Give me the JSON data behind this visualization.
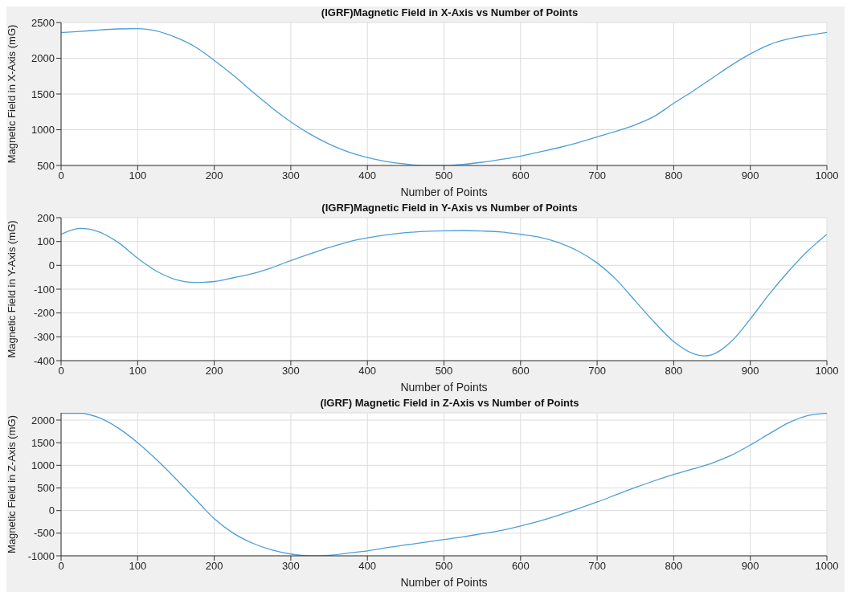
{
  "chart_data": [
    {
      "type": "line",
      "title": "(IGRF)Magnetic Field in X-Axis vs Number of Points",
      "xlabel": "Number of Points",
      "ylabel": "Magnetic Field in X-Axis (mG)",
      "color": "#4d9fd6",
      "grid": true,
      "x": [
        0,
        25,
        50,
        75,
        100,
        125,
        150,
        175,
        200,
        225,
        250,
        275,
        300,
        325,
        350,
        375,
        400,
        425,
        450,
        475,
        500,
        525,
        550,
        575,
        600,
        625,
        650,
        675,
        700,
        725,
        750,
        775,
        800,
        825,
        850,
        875,
        900,
        925,
        950,
        975,
        1000
      ],
      "values": [
        2360,
        2375,
        2395,
        2410,
        2415,
        2380,
        2290,
        2160,
        1970,
        1760,
        1530,
        1310,
        1110,
        940,
        800,
        690,
        610,
        555,
        520,
        500,
        500,
        515,
        545,
        585,
        630,
        690,
        750,
        820,
        900,
        980,
        1070,
        1190,
        1370,
        1540,
        1720,
        1900,
        2060,
        2190,
        2270,
        2320,
        2360
      ],
      "xlim": [
        0,
        1000
      ],
      "xticks": [
        0,
        100,
        200,
        300,
        400,
        500,
        600,
        700,
        800,
        900,
        1000
      ],
      "ylim": [
        500,
        2500
      ],
      "yticks": [
        500,
        1000,
        1500,
        2000,
        2500
      ]
    },
    {
      "type": "line",
      "title": "(IGRF)Magnetic Field in Y-Axis vs Number of Points",
      "xlabel": "Number of Points",
      "ylabel": "Magnetic Field in Y-Axis (mG)",
      "color": "#4d9fd6",
      "grid": true,
      "x": [
        0,
        25,
        50,
        75,
        100,
        125,
        150,
        175,
        200,
        225,
        250,
        275,
        300,
        325,
        350,
        375,
        400,
        425,
        450,
        475,
        500,
        525,
        550,
        575,
        600,
        625,
        650,
        675,
        700,
        725,
        750,
        775,
        800,
        825,
        840,
        850,
        875,
        900,
        925,
        950,
        975,
        1000
      ],
      "values": [
        130,
        155,
        140,
        95,
        30,
        -25,
        -60,
        -72,
        -68,
        -52,
        -35,
        -10,
        20,
        48,
        75,
        98,
        115,
        128,
        137,
        142,
        145,
        146,
        144,
        140,
        130,
        118,
        95,
        60,
        10,
        -60,
        -150,
        -240,
        -320,
        -370,
        -380,
        -375,
        -320,
        -225,
        -120,
        -25,
        60,
        130
      ],
      "xlim": [
        0,
        1000
      ],
      "xticks": [
        0,
        100,
        200,
        300,
        400,
        500,
        600,
        700,
        800,
        900,
        1000
      ],
      "ylim": [
        -400,
        200
      ],
      "yticks": [
        -400,
        -300,
        -200,
        -100,
        0,
        100,
        200
      ]
    },
    {
      "type": "line",
      "title": "(IGRF) Magnetic Field in Z-Axis vs Number of Points",
      "xlabel": "Number of Points",
      "ylabel": "Magnetic Field in Z-Axis (mG)",
      "color": "#4d9fd6",
      "grid": true,
      "x": [
        0,
        25,
        50,
        75,
        100,
        125,
        150,
        175,
        200,
        225,
        250,
        275,
        300,
        325,
        350,
        375,
        400,
        425,
        450,
        475,
        500,
        525,
        550,
        575,
        600,
        625,
        650,
        675,
        700,
        725,
        750,
        775,
        800,
        825,
        850,
        875,
        900,
        925,
        950,
        975,
        1000
      ],
      "values": [
        2150,
        2150,
        2050,
        1820,
        1500,
        1120,
        700,
        260,
        -180,
        -500,
        -720,
        -870,
        -960,
        -1000,
        -990,
        -940,
        -890,
        -820,
        -760,
        -700,
        -640,
        -580,
        -510,
        -440,
        -340,
        -230,
        -100,
        40,
        190,
        350,
        510,
        660,
        800,
        920,
        1050,
        1220,
        1450,
        1700,
        1940,
        2100,
        2150
      ],
      "xlim": [
        0,
        1000
      ],
      "xticks": [
        0,
        100,
        200,
        300,
        400,
        500,
        600,
        700,
        800,
        900,
        1000
      ],
      "ylim": [
        -1000,
        2160
      ],
      "yticks": [
        -1000,
        -500,
        0,
        500,
        1000,
        1500,
        2000
      ]
    }
  ]
}
